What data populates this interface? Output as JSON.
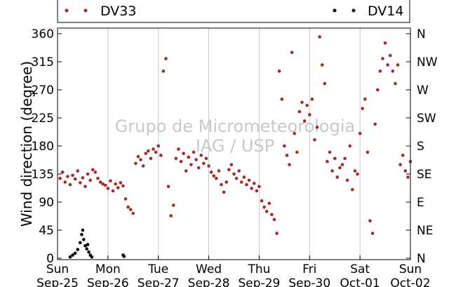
{
  "chart_data": {
    "type": "scatter",
    "ylabel": "Wind direction (degree)",
    "ylim": [
      0,
      365
    ],
    "yticks": [
      0,
      45,
      90,
      135,
      180,
      225,
      270,
      315,
      360
    ],
    "right_ticks": [
      {
        "value": 0,
        "label": "N"
      },
      {
        "value": 45,
        "label": "NE"
      },
      {
        "value": 90,
        "label": "E"
      },
      {
        "value": 135,
        "label": "SE"
      },
      {
        "value": 180,
        "label": "S"
      },
      {
        "value": 225,
        "label": "SW"
      },
      {
        "value": 270,
        "label": "W"
      },
      {
        "value": 315,
        "label": "NW"
      },
      {
        "value": 360,
        "label": "N"
      }
    ],
    "xlim_days": [
      0,
      7
    ],
    "xticks": [
      {
        "day": 0,
        "line1": "Sun",
        "line2": "Sep-25"
      },
      {
        "day": 1,
        "line1": "Mon",
        "line2": "Sep-26"
      },
      {
        "day": 2,
        "line1": "Tue",
        "line2": "Sep-27"
      },
      {
        "day": 3,
        "line1": "Wed",
        "line2": "Sep-28"
      },
      {
        "day": 4,
        "line1": "Thu",
        "line2": "Sep-29"
      },
      {
        "day": 5,
        "line1": "Fri",
        "line2": "Sep-30"
      },
      {
        "day": 6,
        "line1": "Sat",
        "line2": "Oct-01"
      },
      {
        "day": 7,
        "line1": "Sun",
        "line2": "Oct-02"
      }
    ],
    "grid": "vertical",
    "legend_placement": "top",
    "watermark": [
      "Grupo de Micrometeorologia",
      "IAG / USP"
    ],
    "series": [
      {
        "name": "DV33",
        "color": "#a52a2a",
        "points": [
          [
            0.05,
            128
          ],
          [
            0.1,
            138
          ],
          [
            0.15,
            122
          ],
          [
            0.2,
            131
          ],
          [
            0.25,
            118
          ],
          [
            0.3,
            133
          ],
          [
            0.35,
            127
          ],
          [
            0.4,
            140
          ],
          [
            0.45,
            121
          ],
          [
            0.5,
            129
          ],
          [
            0.55,
            115
          ],
          [
            0.6,
            135
          ],
          [
            0.65,
            125
          ],
          [
            0.7,
            142
          ],
          [
            0.75,
            138
          ],
          [
            0.8,
            128
          ],
          [
            0.85,
            122
          ],
          [
            0.9,
            119
          ],
          [
            0.95,
            117
          ],
          [
            1.0,
            112
          ],
          [
            1.05,
            124
          ],
          [
            1.1,
            108
          ],
          [
            1.15,
            119
          ],
          [
            1.2,
            113
          ],
          [
            1.25,
            121
          ],
          [
            1.3,
            116
          ],
          [
            1.35,
            95
          ],
          [
            1.4,
            82
          ],
          [
            1.45,
            78
          ],
          [
            1.5,
            72
          ],
          [
            1.55,
            152
          ],
          [
            1.6,
            163
          ],
          [
            1.65,
            158
          ],
          [
            1.7,
            148
          ],
          [
            1.75,
            168
          ],
          [
            1.8,
            172
          ],
          [
            1.85,
            160
          ],
          [
            1.9,
            175
          ],
          [
            1.95,
            170
          ],
          [
            2.0,
            180
          ],
          [
            2.05,
            165
          ],
          [
            2.1,
            300
          ],
          [
            2.15,
            320
          ],
          [
            2.2,
            115
          ],
          [
            2.25,
            68
          ],
          [
            2.3,
            85
          ],
          [
            2.35,
            160
          ],
          [
            2.4,
            175
          ],
          [
            2.45,
            155
          ],
          [
            2.5,
            168
          ],
          [
            2.55,
            140
          ],
          [
            2.6,
            162
          ],
          [
            2.65,
            150
          ],
          [
            2.7,
            170
          ],
          [
            2.75,
            158
          ],
          [
            2.8,
            145
          ],
          [
            2.85,
            165
          ],
          [
            2.9,
            152
          ],
          [
            2.95,
            160
          ],
          [
            3.0,
            148
          ],
          [
            3.05,
            138
          ],
          [
            3.1,
            132
          ],
          [
            3.15,
            128
          ],
          [
            3.2,
            140
          ],
          [
            3.25,
            118
          ],
          [
            3.3,
            106
          ],
          [
            3.35,
            122
          ],
          [
            3.4,
            142
          ],
          [
            3.45,
            150
          ],
          [
            3.5,
            135
          ],
          [
            3.55,
            128
          ],
          [
            3.6,
            140
          ],
          [
            3.65,
            122
          ],
          [
            3.7,
            130
          ],
          [
            3.75,
            118
          ],
          [
            3.8,
            125
          ],
          [
            3.85,
            112
          ],
          [
            3.9,
            120
          ],
          [
            3.95,
            108
          ],
          [
            4.0,
            115
          ],
          [
            4.05,
            92
          ],
          [
            4.1,
            82
          ],
          [
            4.15,
            75
          ],
          [
            4.2,
            88
          ],
          [
            4.25,
            70
          ],
          [
            4.3,
            62
          ],
          [
            4.35,
            40
          ],
          [
            4.4,
            300
          ],
          [
            4.45,
            255
          ],
          [
            4.5,
            180
          ],
          [
            4.55,
            165
          ],
          [
            4.6,
            150
          ],
          [
            4.65,
            330
          ],
          [
            4.7,
            200
          ],
          [
            4.75,
            170
          ],
          [
            4.8,
            235
          ],
          [
            4.85,
            250
          ],
          [
            4.9,
            220
          ],
          [
            4.95,
            245
          ],
          [
            5.0,
            230
          ],
          [
            5.05,
            255
          ],
          [
            5.1,
            190
          ],
          [
            5.15,
            210
          ],
          [
            5.2,
            355
          ],
          [
            5.25,
            310
          ],
          [
            5.3,
            280
          ],
          [
            5.35,
            155
          ],
          [
            5.4,
            170
          ],
          [
            5.45,
            140
          ],
          [
            5.5,
            160
          ],
          [
            5.55,
            130
          ],
          [
            5.6,
            145
          ],
          [
            5.65,
            150
          ],
          [
            5.7,
            160
          ],
          [
            5.75,
            125
          ],
          [
            5.8,
            180
          ],
          [
            5.85,
            110
          ],
          [
            5.9,
            140
          ],
          [
            5.95,
            135
          ],
          [
            6.0,
            200
          ],
          [
            6.05,
            240
          ],
          [
            6.1,
            255
          ],
          [
            6.15,
            170
          ],
          [
            6.2,
            60
          ],
          [
            6.25,
            40
          ],
          [
            6.3,
            215
          ],
          [
            6.35,
            270
          ],
          [
            6.4,
            300
          ],
          [
            6.45,
            320
          ],
          [
            6.5,
            345
          ],
          [
            6.55,
            310
          ],
          [
            6.6,
            325
          ],
          [
            6.65,
            300
          ],
          [
            6.7,
            280
          ],
          [
            6.75,
            310
          ],
          [
            6.8,
            150
          ],
          [
            6.85,
            165
          ],
          [
            6.9,
            140
          ],
          [
            6.95,
            130
          ],
          [
            7.0,
            155
          ]
        ]
      },
      {
        "name": "DV14",
        "color": "#000000",
        "points": [
          [
            0.25,
            2
          ],
          [
            0.3,
            5
          ],
          [
            0.35,
            8
          ],
          [
            0.4,
            14
          ],
          [
            0.45,
            25
          ],
          [
            0.48,
            38
          ],
          [
            0.5,
            45
          ],
          [
            0.52,
            30
          ],
          [
            0.55,
            20
          ],
          [
            0.58,
            15
          ],
          [
            0.6,
            22
          ],
          [
            0.62,
            10
          ],
          [
            0.65,
            5
          ],
          [
            0.68,
            2
          ],
          [
            1.3,
            5
          ],
          [
            1.32,
            3
          ]
        ]
      }
    ]
  }
}
